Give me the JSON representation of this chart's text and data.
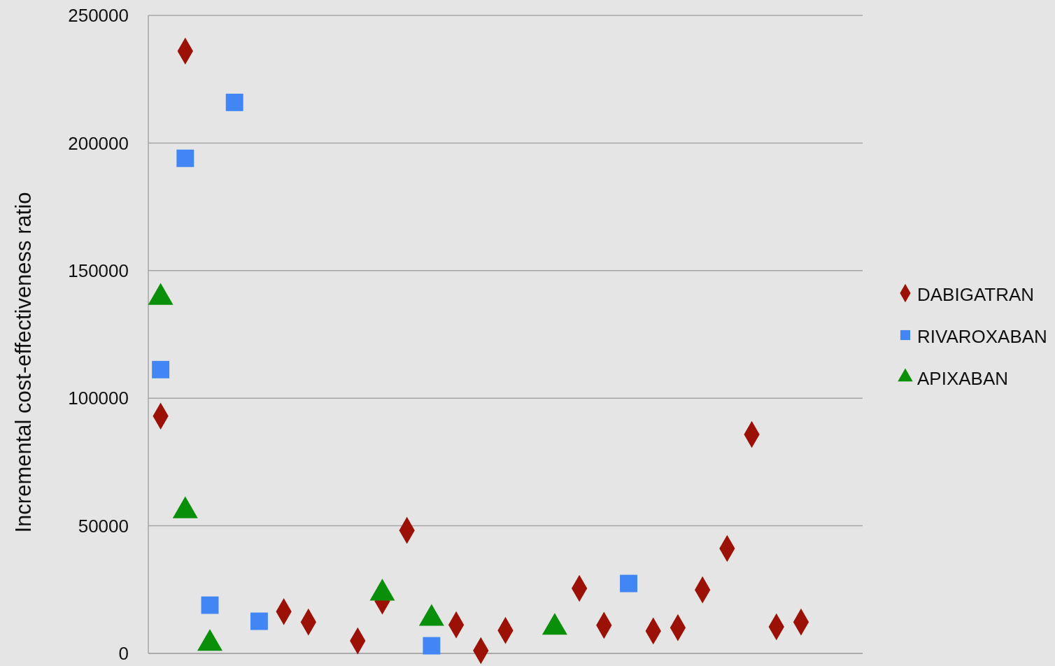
{
  "chart_data": {
    "type": "scatter",
    "ylabel": "Incremental cost-effectiveness ratio",
    "categories": [
      null,
      null,
      null,
      null,
      null,
      null,
      null,
      null,
      null,
      null,
      null,
      null,
      null,
      null,
      null,
      null,
      null,
      null,
      null,
      null,
      null,
      null,
      null,
      null,
      null,
      null,
      null,
      null,
      null
    ],
    "series": [
      {
        "name": "DABIGATRAN",
        "color": "#9b1106",
        "marker": "diamond",
        "values": [
          93000,
          236000,
          null,
          null,
          null,
          16400,
          12300,
          null,
          4900,
          20500,
          48200,
          null,
          11200,
          1100,
          9000,
          null,
          null,
          25500,
          11000,
          null,
          8800,
          10100,
          24900,
          41100,
          85800,
          10400,
          12300,
          null,
          null
        ]
      },
      {
        "name": "RIVAROXABAN",
        "color": "#4285f4",
        "marker": "square",
        "values": [
          111200,
          194000,
          18900,
          215900,
          12600,
          null,
          null,
          null,
          null,
          null,
          null,
          3000,
          null,
          null,
          null,
          null,
          null,
          null,
          null,
          27400,
          null,
          null,
          null,
          null,
          null,
          null,
          null,
          null,
          null
        ]
      },
      {
        "name": "APIXABAN",
        "color": "#0a8f0a",
        "marker": "triangle",
        "values": [
          140000,
          56400,
          4400,
          null,
          null,
          null,
          null,
          null,
          null,
          24100,
          null,
          14200,
          null,
          null,
          null,
          null,
          10700,
          null,
          null,
          null,
          null,
          null,
          null,
          null,
          null,
          null,
          null,
          null,
          null
        ]
      }
    ],
    "ylim": [
      0,
      250000
    ],
    "yticks": [
      0,
      50000,
      100000,
      150000,
      200000,
      250000
    ],
    "grid": "y",
    "legend": "right",
    "tick_labels": "y"
  }
}
